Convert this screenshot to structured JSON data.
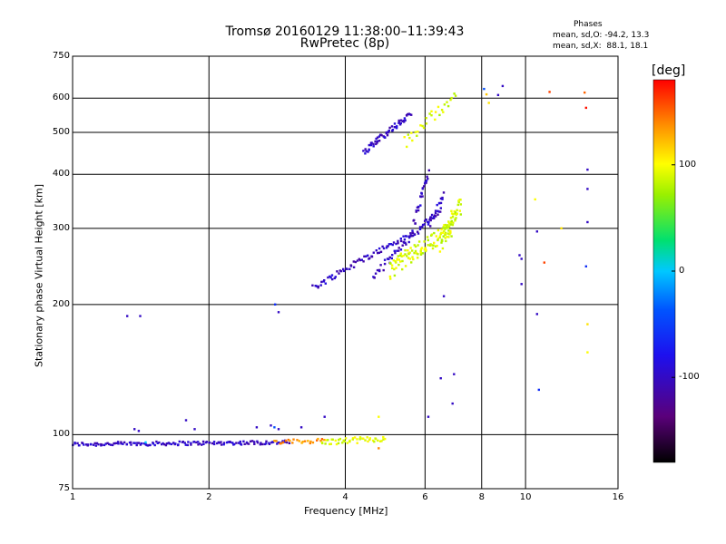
{
  "chart_data": {
    "type": "scatter",
    "title": "Tromsø 20160129 11:38:00–11:39:43",
    "subtitle": "RwPretec (8p)",
    "xlabel": "Frequency [MHz]",
    "ylabel": "Stationary phase Virtual Height [km]",
    "xscale": "log",
    "yscale": "log",
    "xlim": [
      1,
      16
    ],
    "ylim": [
      75,
      750
    ],
    "xticks": [
      1,
      2,
      4,
      6,
      8,
      10,
      16
    ],
    "xtick_labels": [
      "1",
      "2",
      "4",
      "6",
      "8",
      "10",
      "16"
    ],
    "yticks": [
      75,
      100,
      200,
      300,
      400,
      500,
      600,
      750
    ],
    "ytick_labels": [
      "75",
      "100",
      "200",
      "300",
      "400",
      "500",
      "600",
      "750"
    ],
    "grid": true,
    "phase_stats": {
      "header": "Phases",
      "o_mode": "mean, sd,O: -94.2, 13.3",
      "x_mode": "mean, sd,X:  88.1, 18.1"
    },
    "colorbar": {
      "label": "[deg]",
      "range": [
        -180,
        180
      ],
      "ticks": [
        100,
        0,
        -100
      ],
      "tick_labels": [
        "100",
        "0",
        "-100"
      ],
      "colormap": "rainbow"
    },
    "traces": [
      {
        "x_range": [
          1.0,
          3.0
        ],
        "height_start": 95,
        "height_end": 96,
        "phase": -100,
        "n": 150,
        "jitter": 1.0
      },
      {
        "x_range": [
          2.8,
          3.6
        ],
        "height_start": 96,
        "height_end": 97,
        "phase": 140,
        "n": 24,
        "jitter": 1.2
      },
      {
        "x_range": [
          3.55,
          4.9
        ],
        "height_start": 96,
        "height_end": 98,
        "phase": 90,
        "n": 45,
        "jitter": 1.5
      },
      {
        "x_range": [
          3.4,
          5.6
        ],
        "height_start": 218,
        "height_end": 290,
        "phase": -100,
        "n": 70,
        "jitter": 4
      },
      {
        "x_range": [
          4.6,
          6.5
        ],
        "height_start": 230,
        "height_end": 330,
        "phase": -100,
        "n": 55,
        "jitter": 5
      },
      {
        "x_range": [
          5.6,
          6.1
        ],
        "height_start": 290,
        "height_end": 400,
        "phase": -100,
        "n": 30,
        "jitter": 10
      },
      {
        "x_range": [
          6.1,
          6.6
        ],
        "height_start": 300,
        "height_end": 360,
        "phase": -100,
        "n": 20,
        "jitter": 8
      },
      {
        "x_range": [
          4.4,
          5.6
        ],
        "height_start": 452,
        "height_end": 550,
        "phase": -100,
        "n": 60,
        "jitter": 8
      },
      {
        "x_range": [
          5.0,
          6.9
        ],
        "height_start": 240,
        "height_end": 300,
        "phase": 90,
        "n": 100,
        "jitter": 12
      },
      {
        "x_range": [
          6.5,
          7.2
        ],
        "height_start": 280,
        "height_end": 340,
        "phase": 90,
        "n": 50,
        "jitter": 15
      },
      {
        "x_range": [
          5.4,
          7.0
        ],
        "height_start": 470,
        "height_end": 610,
        "phase": 90,
        "n": 30,
        "jitter": 20
      }
    ],
    "points": [
      {
        "x": 1.32,
        "y": 188,
        "phase": -100
      },
      {
        "x": 1.41,
        "y": 188,
        "phase": -100
      },
      {
        "x": 2.85,
        "y": 192,
        "phase": -100
      },
      {
        "x": 2.8,
        "y": 200,
        "phase": -60
      },
      {
        "x": 1.37,
        "y": 103,
        "phase": -100
      },
      {
        "x": 1.4,
        "y": 102,
        "phase": -100
      },
      {
        "x": 1.78,
        "y": 108,
        "phase": -100
      },
      {
        "x": 1.86,
        "y": 103,
        "phase": -100
      },
      {
        "x": 2.55,
        "y": 104,
        "phase": -100
      },
      {
        "x": 2.74,
        "y": 105,
        "phase": -100
      },
      {
        "x": 2.79,
        "y": 104,
        "phase": -40
      },
      {
        "x": 2.85,
        "y": 103,
        "phase": -100
      },
      {
        "x": 3.2,
        "y": 104,
        "phase": -100
      },
      {
        "x": 3.6,
        "y": 110,
        "phase": -100
      },
      {
        "x": 4.74,
        "y": 110,
        "phase": 100
      },
      {
        "x": 4.74,
        "y": 93,
        "phase": 140
      },
      {
        "x": 1.45,
        "y": 96,
        "phase": 0
      },
      {
        "x": 6.1,
        "y": 110,
        "phase": -100
      },
      {
        "x": 6.5,
        "y": 135,
        "phase": -100
      },
      {
        "x": 6.9,
        "y": 118,
        "phase": -100
      },
      {
        "x": 6.95,
        "y": 138,
        "phase": -100
      },
      {
        "x": 6.6,
        "y": 209,
        "phase": -100
      },
      {
        "x": 8.1,
        "y": 630,
        "phase": -40
      },
      {
        "x": 8.2,
        "y": 612,
        "phase": 120
      },
      {
        "x": 8.3,
        "y": 585,
        "phase": 110
      },
      {
        "x": 8.7,
        "y": 610,
        "phase": -100
      },
      {
        "x": 8.9,
        "y": 640,
        "phase": -100
      },
      {
        "x": 9.7,
        "y": 260,
        "phase": -100
      },
      {
        "x": 9.8,
        "y": 255,
        "phase": -100
      },
      {
        "x": 9.8,
        "y": 223,
        "phase": -100
      },
      {
        "x": 10.5,
        "y": 350,
        "phase": 100
      },
      {
        "x": 10.6,
        "y": 295,
        "phase": -100
      },
      {
        "x": 10.6,
        "y": 190,
        "phase": -100
      },
      {
        "x": 10.7,
        "y": 127,
        "phase": -60
      },
      {
        "x": 11.0,
        "y": 250,
        "phase": 160
      },
      {
        "x": 11.3,
        "y": 620,
        "phase": 160
      },
      {
        "x": 12.0,
        "y": 300,
        "phase": 110
      },
      {
        "x": 13.5,
        "y": 618,
        "phase": 150
      },
      {
        "x": 13.6,
        "y": 570,
        "phase": 175
      },
      {
        "x": 13.7,
        "y": 410,
        "phase": -100
      },
      {
        "x": 13.7,
        "y": 370,
        "phase": -100
      },
      {
        "x": 13.7,
        "y": 310,
        "phase": -100
      },
      {
        "x": 13.6,
        "y": 245,
        "phase": -60
      },
      {
        "x": 13.7,
        "y": 180,
        "phase": 110
      },
      {
        "x": 13.7,
        "y": 155,
        "phase": 100
      }
    ]
  }
}
